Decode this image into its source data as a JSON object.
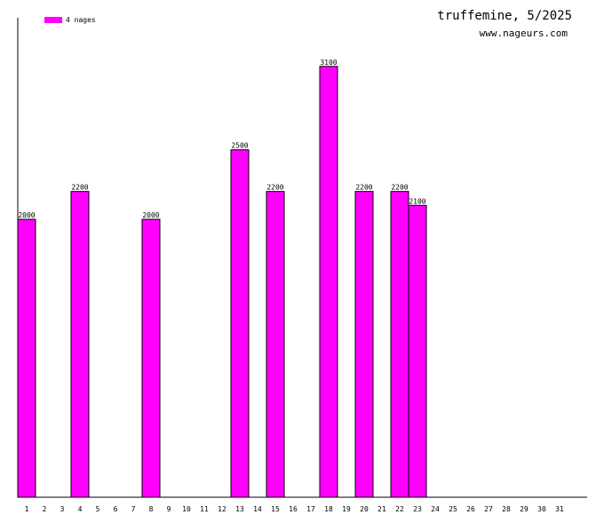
{
  "colors": {
    "bar": "#ff00ff",
    "bar_stroke": "#000000",
    "axis": "#000000"
  },
  "legend": {
    "label": "4 nages"
  },
  "header": {
    "title": "truffemine, 5/2025",
    "site": "www.nageurs.com"
  },
  "chart_data": {
    "type": "bar",
    "categories": [
      "1",
      "2",
      "3",
      "4",
      "5",
      "6",
      "7",
      "8",
      "9",
      "10",
      "11",
      "12",
      "13",
      "14",
      "15",
      "16",
      "17",
      "18",
      "19",
      "20",
      "21",
      "22",
      "23",
      "24",
      "25",
      "26",
      "27",
      "28",
      "29",
      "30",
      "31"
    ],
    "series": [
      {
        "name": "4 nages",
        "values": [
          2000,
          null,
          null,
          2200,
          null,
          null,
          null,
          2000,
          null,
          null,
          null,
          null,
          2500,
          null,
          2200,
          null,
          null,
          3100,
          null,
          2200,
          null,
          2200,
          2100,
          null,
          null,
          null,
          null,
          null,
          null,
          null,
          null
        ]
      }
    ],
    "data_labels": [
      "2000",
      "",
      "",
      "2200",
      "",
      "",
      "",
      "2000",
      "",
      "",
      "",
      "",
      "2500",
      "",
      "2200",
      "",
      "",
      "3100",
      "",
      "2200",
      "",
      "2200",
      "2100",
      "",
      "",
      "",
      "",
      "",
      "",
      "",
      ""
    ],
    "ylim": [
      0,
      3450
    ],
    "grid": false,
    "legend_position": "top-left"
  }
}
